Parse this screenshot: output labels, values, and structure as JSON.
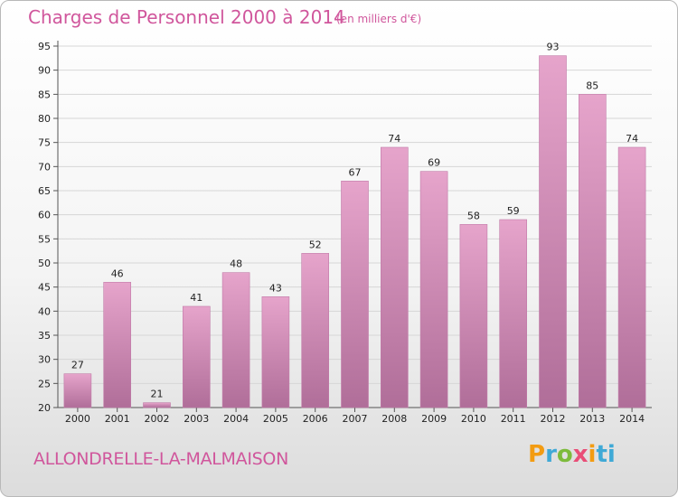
{
  "header": {
    "title": "Charges de Personnel 2000 à 2014",
    "subtitle": "(en milliers d'€)"
  },
  "footer": {
    "commune": "ALLONDRELLE-LA-MALMAISON",
    "logo": "Proxiti"
  },
  "colors": {
    "accent": "#d0569c",
    "bar_top": "#e6a4cb",
    "bar_bottom": "#b06e99"
  },
  "chart_data": {
    "type": "bar",
    "title": "Charges de Personnel 2000 à 2014",
    "subtitle": "(en milliers d'€)",
    "xlabel": "",
    "ylabel": "",
    "categories": [
      "2000",
      "2001",
      "2002",
      "2003",
      "2004",
      "2005",
      "2006",
      "2007",
      "2008",
      "2009",
      "2010",
      "2011",
      "2012",
      "2013",
      "2014"
    ],
    "values": [
      27,
      46,
      21,
      41,
      48,
      43,
      52,
      67,
      74,
      69,
      58,
      59,
      93,
      85,
      74
    ],
    "ylim": [
      20,
      95
    ],
    "yticks": [
      20,
      25,
      30,
      35,
      40,
      45,
      50,
      55,
      60,
      65,
      70,
      75,
      80,
      85,
      90,
      95
    ],
    "grid": true,
    "legend": "none"
  }
}
